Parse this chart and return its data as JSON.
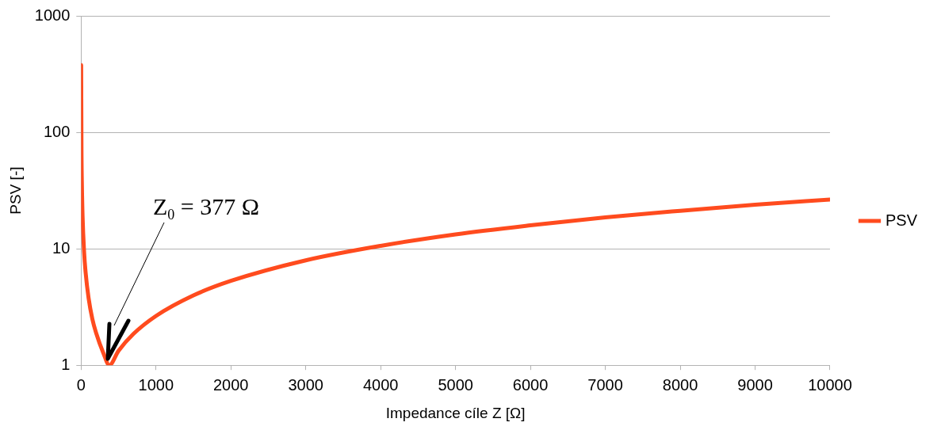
{
  "chart_data": {
    "type": "line",
    "xlabel": "Impedance cíle Z [Ω]",
    "ylabel": "PSV [-]",
    "x": [
      1,
      5,
      10,
      20,
      40,
      60,
      100,
      150,
      200,
      300,
      377,
      500,
      700,
      1000,
      1500,
      2000,
      3000,
      4000,
      5000,
      6000,
      7000,
      8000,
      9000,
      10000
    ],
    "series": [
      {
        "name": "PSV",
        "color": "#ff4b1e",
        "values": [
          377,
          75,
          37.7,
          18.9,
          9.4,
          6.3,
          3.77,
          2.5,
          1.9,
          1.26,
          1,
          1.33,
          1.86,
          2.65,
          3.98,
          5.3,
          7.96,
          10.6,
          13.3,
          15.9,
          18.6,
          21.2,
          23.9,
          26.5
        ]
      }
    ],
    "xlim": [
      0,
      10000
    ],
    "xticks": [
      0,
      1000,
      2000,
      3000,
      4000,
      5000,
      6000,
      7000,
      8000,
      9000,
      10000
    ],
    "ylim": [
      1,
      1000
    ],
    "yticks": [
      1,
      10,
      100,
      1000
    ],
    "log": "y",
    "grid": "y",
    "legend": "right",
    "marker": "none",
    "line_style": "solid",
    "annotations": [
      "Z$_{0}$ = 377 Ω"
    ]
  }
}
